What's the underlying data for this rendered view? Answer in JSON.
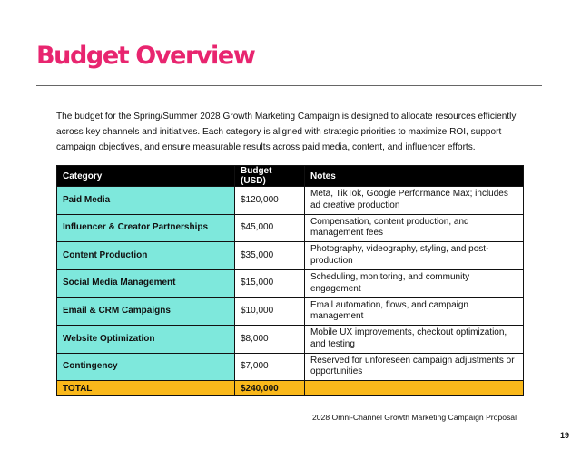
{
  "title": "Budget Overview",
  "intro": "The budget for the Spring/Summer 2028 Growth Marketing Campaign is designed to allocate resources efficiently across key channels and initiatives. Each category is aligned with strategic priorities to maximize ROI, support campaign objectives, and ensure measurable results across paid media, content, and influencer efforts.",
  "table": {
    "headers": [
      "Category",
      "Budget (USD)",
      "Notes"
    ],
    "rows": [
      {
        "category": "Paid Media",
        "budget": "$120,000",
        "notes": "Meta, TikTok, Google Performance Max; includes ad creative production"
      },
      {
        "category": "Influencer & Creator Partnerships",
        "budget": "$45,000",
        "notes": "Compensation, content production, and management fees"
      },
      {
        "category": "Content Production",
        "budget": "$35,000",
        "notes": "Photography, videography, styling, and post-production"
      },
      {
        "category": "Social Media Management",
        "budget": "$15,000",
        "notes": "Scheduling, monitoring, and community engagement"
      },
      {
        "category": "Email & CRM Campaigns",
        "budget": "$10,000",
        "notes": "Email automation, flows, and campaign management"
      },
      {
        "category": "Website Optimization",
        "budget": "$8,000",
        "notes": "Mobile UX improvements, checkout optimization, and testing"
      },
      {
        "category": "Contingency",
        "budget": "$7,000",
        "notes": "Reserved for unforeseen campaign adjustments or opportunities"
      }
    ],
    "total": {
      "label": "TOTAL",
      "budget": "$240,000",
      "notes": ""
    }
  },
  "footer": "2028 Omni-Channel Growth Marketing Campaign Proposal",
  "page_number": "19",
  "colors": {
    "title": "#e8256f",
    "header_bg": "#000000",
    "category_bg": "#7ee8dc",
    "total_bg": "#f9b81b"
  }
}
